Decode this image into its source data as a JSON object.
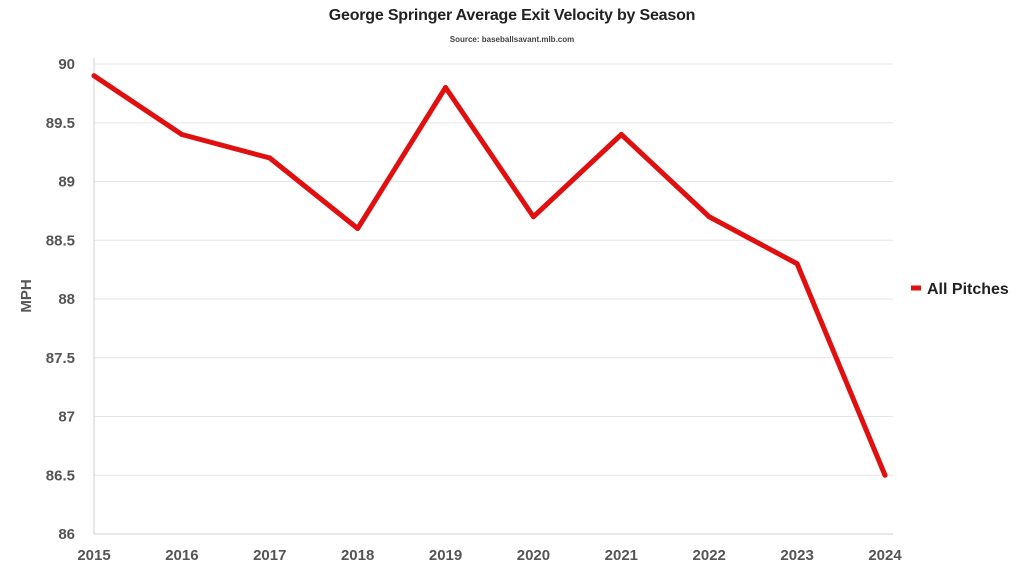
{
  "chart_data": {
    "type": "line",
    "title": "George Springer Average Exit Velocity by Season",
    "subtitle": "Source: baseballsavant.mlb.com",
    "xlabel": "",
    "ylabel": "MPH",
    "categories": [
      "2015",
      "2016",
      "2017",
      "2018",
      "2019",
      "2020",
      "2021",
      "2022",
      "2023",
      "2024"
    ],
    "ylim": [
      86,
      90
    ],
    "yticks": [
      "86",
      "86.5",
      "87",
      "87.5",
      "88",
      "88.5",
      "89",
      "89.5",
      "90"
    ],
    "series": [
      {
        "name": "All Pitches",
        "color": "#e01010",
        "values": [
          89.9,
          89.4,
          89.2,
          88.6,
          89.8,
          88.7,
          89.4,
          88.7,
          88.3,
          86.5
        ]
      }
    ],
    "grid": true,
    "legend_position": "right"
  }
}
